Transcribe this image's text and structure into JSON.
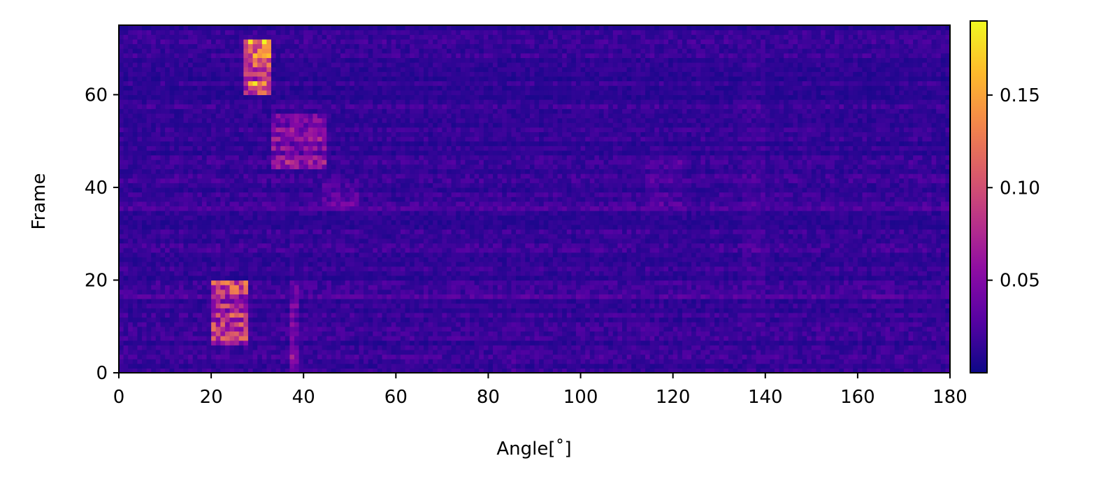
{
  "chart_data": {
    "type": "heatmap",
    "title": "",
    "xlabel": "Angle[$^{\\circ}$]",
    "xlabel_display": "Angle[˚]",
    "ylabel": "Frame",
    "xlim": [
      0,
      180
    ],
    "ylim": [
      0,
      75
    ],
    "x_ticks": [
      0,
      20,
      40,
      60,
      80,
      100,
      120,
      140,
      160,
      180
    ],
    "y_ticks": [
      0,
      20,
      40,
      60
    ],
    "grid": false,
    "colormap": "plasma",
    "colorbar": {
      "range": [
        0.0,
        0.19
      ],
      "ticks": [
        0.05,
        0.1,
        0.15
      ],
      "tick_labels": [
        "0.05",
        "0.10",
        "0.15"
      ]
    },
    "n_angle_bins": 180,
    "n_frames": 75,
    "background_level": 0.015,
    "hotspots": [
      {
        "angle": [
          27,
          33
        ],
        "frames": [
          60,
          72
        ],
        "peak": 0.18
      },
      {
        "angle": [
          20,
          28
        ],
        "frames": [
          6,
          20
        ],
        "peak": 0.12
      },
      {
        "angle": [
          22,
          23
        ],
        "frames": [
          16,
          17
        ],
        "peak": 0.19
      },
      {
        "angle": [
          37,
          39
        ],
        "frames": [
          0,
          20
        ],
        "peak": 0.06
      },
      {
        "angle": [
          33,
          45
        ],
        "frames": [
          44,
          56
        ],
        "peak": 0.08
      },
      {
        "angle": [
          44,
          52
        ],
        "frames": [
          35,
          41
        ],
        "peak": 0.045
      },
      {
        "angle": [
          114,
          122
        ],
        "frames": [
          35,
          46
        ],
        "peak": 0.035
      },
      {
        "angle": [
          135,
          140
        ],
        "frames": [
          10,
          70
        ],
        "peak": 0.03
      },
      {
        "angle": [
          84,
          86
        ],
        "frames": [
          0,
          4
        ],
        "peak": 0.035
      }
    ],
    "bright_rows": [
      {
        "frame": 16,
        "level": 0.03
      },
      {
        "frame": 35,
        "level": 0.028
      }
    ]
  }
}
